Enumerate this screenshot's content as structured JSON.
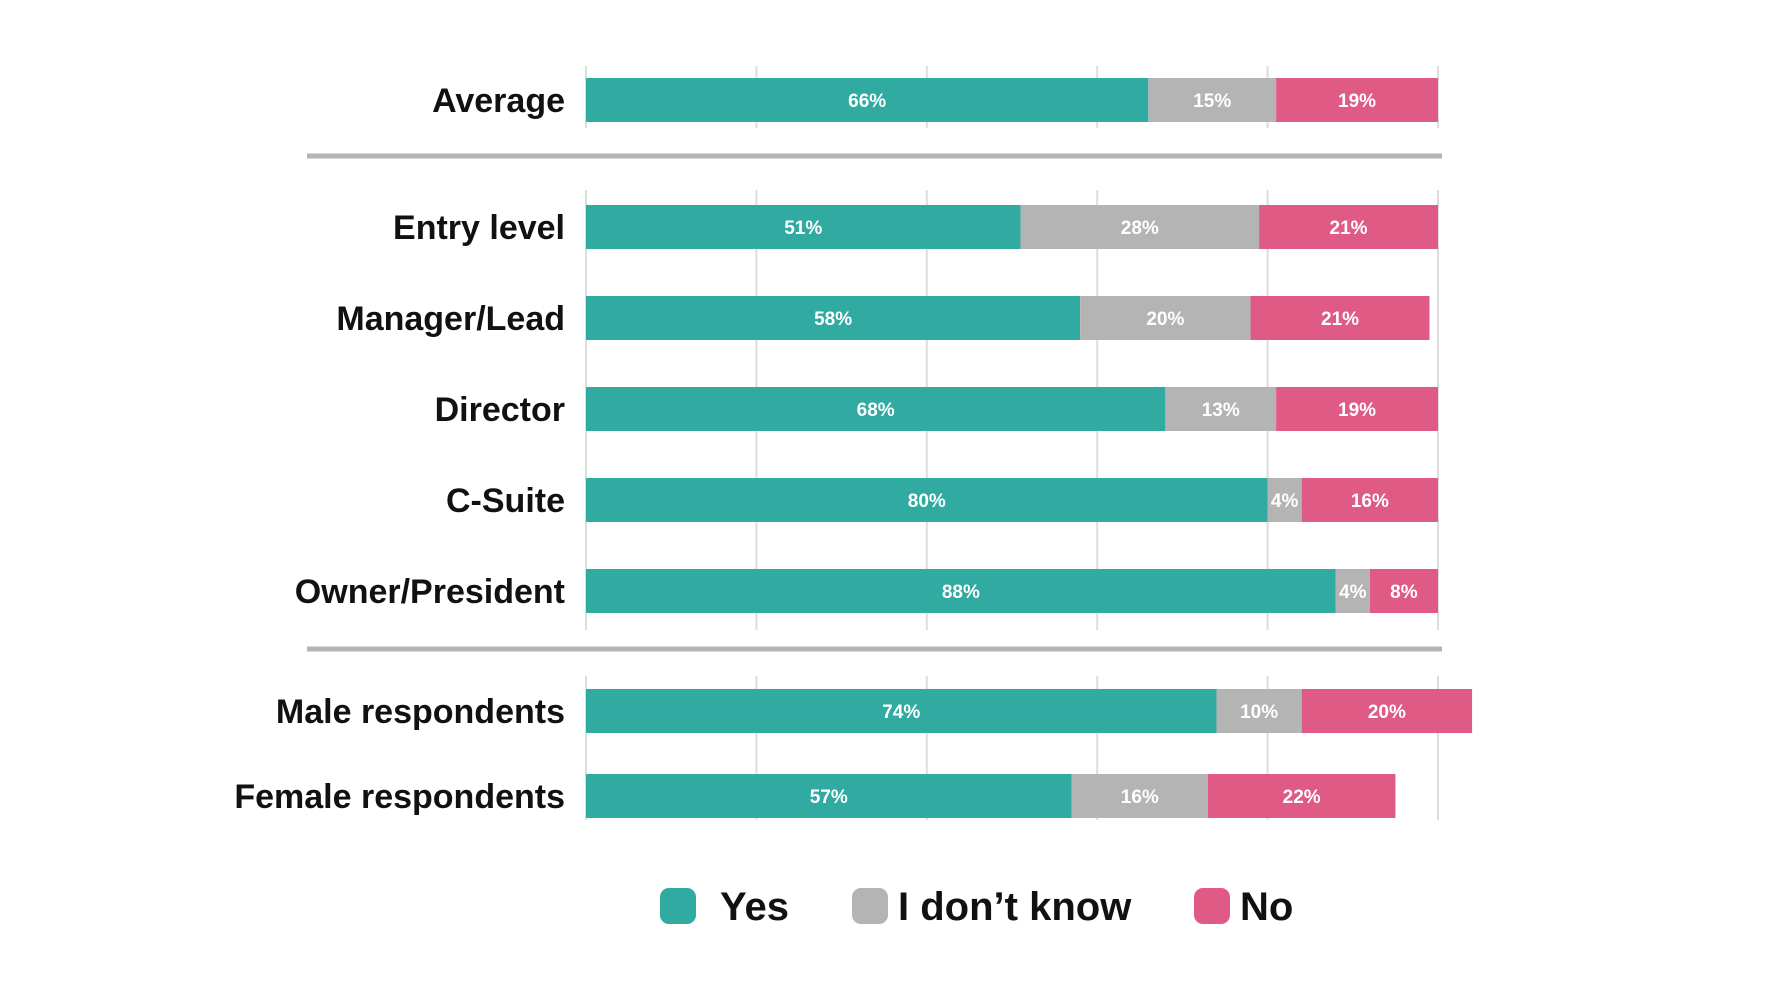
{
  "chart_data": {
    "type": "bar",
    "orientation": "horizontal",
    "stacked": true,
    "xlim": [
      0,
      100
    ],
    "grid": true,
    "legend_position": "bottom",
    "categories": [
      "Average",
      "Entry level",
      "Manager/Lead",
      "Director",
      "C-Suite",
      "Owner/President",
      "Male respondents",
      "Female respondents"
    ],
    "groups": [
      [
        "Average"
      ],
      [
        "Entry level",
        "Manager/Lead",
        "Director",
        "C-Suite",
        "Owner/President"
      ],
      [
        "Male respondents",
        "Female respondents"
      ]
    ],
    "series": [
      {
        "name": "Yes",
        "color": "#31aba2",
        "values": [
          66,
          51,
          58,
          68,
          80,
          88,
          74,
          57
        ],
        "labels": [
          "66%",
          "51%",
          "58%",
          "68%",
          "80%",
          "88%",
          "74%",
          "57%"
        ]
      },
      {
        "name": "I don’t know",
        "color": "#b4b4b4",
        "values": [
          15,
          28,
          20,
          13,
          4,
          4,
          10,
          16
        ],
        "labels": [
          "15%",
          "28%",
          "20%",
          "13%",
          "4%",
          "4%",
          "10%",
          "16%"
        ]
      },
      {
        "name": "No",
        "color": "#df5a84",
        "values": [
          19,
          21,
          21,
          19,
          16,
          8,
          20,
          22
        ],
        "labels": [
          "19%",
          "21%",
          "21%",
          "19%",
          "16%",
          "8%",
          "20%",
          "22%"
        ]
      }
    ]
  }
}
